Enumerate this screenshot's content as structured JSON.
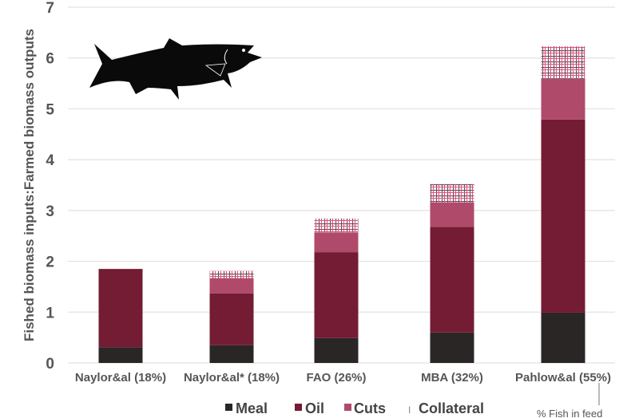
{
  "chart_data": {
    "type": "bar",
    "stacked": true,
    "title": "",
    "xlabel": "",
    "ylabel": "Fished biomass inputs:Farmed biomass outputs",
    "ylim": [
      0,
      7
    ],
    "yticks": [
      "0",
      "1",
      "2",
      "3",
      "4",
      "5",
      "6",
      "7"
    ],
    "grid": true,
    "categories": [
      "Naylor&al (18%)",
      "Naylor&al* (18%)",
      "FAO (26%)",
      "MBA (32%)",
      "Pahlow&al (55%)"
    ],
    "series": [
      {
        "name": "Meal",
        "color": "#2a2626",
        "values": [
          0.31,
          0.35,
          0.49,
          0.6,
          0.99
        ]
      },
      {
        "name": "Oil",
        "color": "#741c34",
        "values": [
          1.54,
          1.02,
          1.69,
          2.08,
          3.8
        ]
      },
      {
        "name": "Cuts",
        "color": "#b04a6a",
        "values": [
          0,
          0.3,
          0.39,
          0.48,
          0.8
        ]
      },
      {
        "name": "Collateral",
        "color": "#d9436b",
        "values": [
          0,
          0.14,
          0.27,
          0.36,
          0.64
        ]
      }
    ],
    "legend_position": "bottom",
    "annotation": "% Fish in feed"
  }
}
